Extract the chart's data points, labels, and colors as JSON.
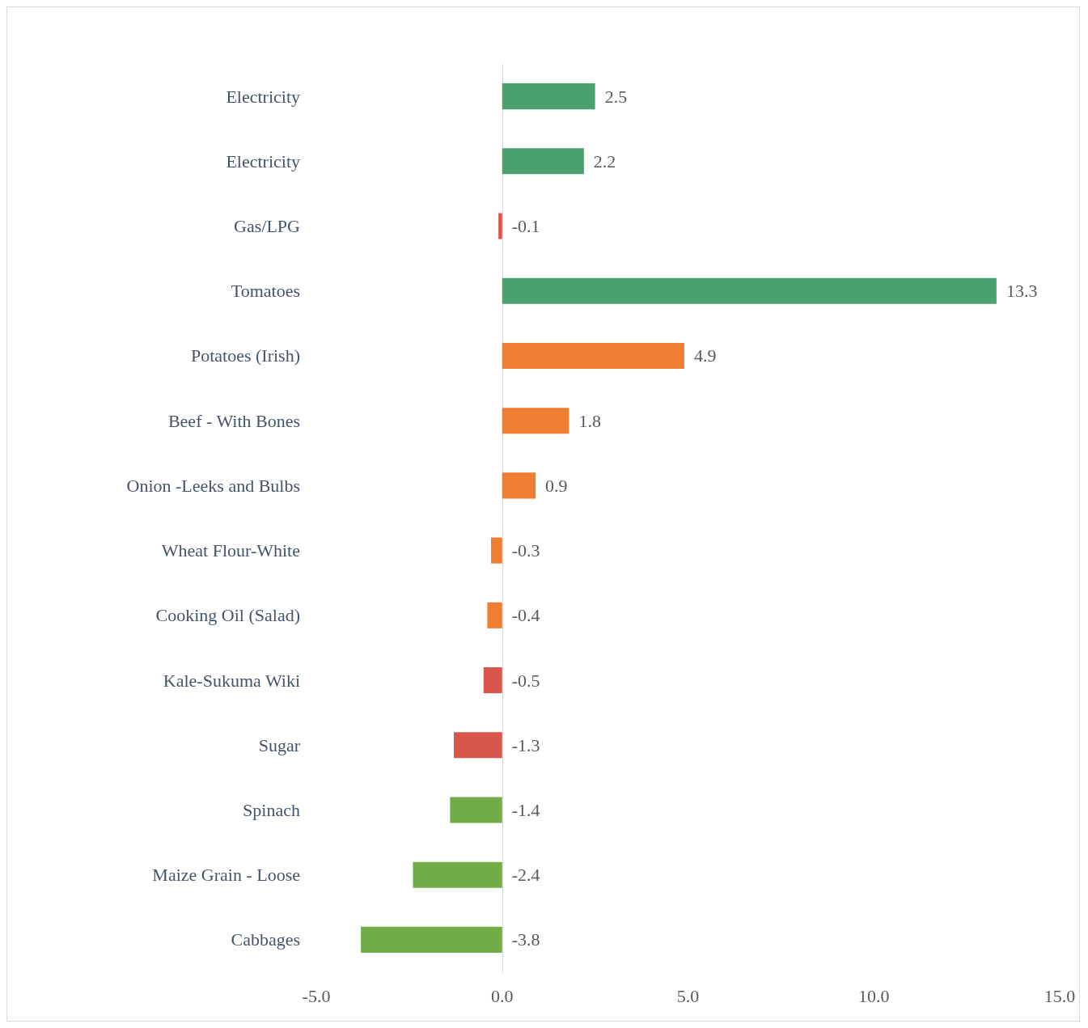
{
  "chart_data": {
    "type": "bar",
    "orientation": "horizontal",
    "data_labels": true,
    "categories": [
      "Electricity",
      "Electricity",
      "Gas/LPG",
      "Tomatoes",
      "Potatoes (Irish)",
      "Beef - With Bones",
      "Onion -Leeks and Bulbs",
      "Wheat Flour-White",
      "Cooking Oil (Salad)",
      "Kale-Sukuma Wiki",
      "Sugar",
      "Spinach",
      "Maize Grain - Loose",
      "Cabbages"
    ],
    "values": [
      2.5,
      2.2,
      -0.1,
      13.3,
      4.9,
      1.8,
      0.9,
      -0.3,
      -0.4,
      -0.5,
      -1.3,
      -1.4,
      -2.4,
      -3.8
    ],
    "colors": [
      "#4aa06f",
      "#4aa06f",
      "#d9574a",
      "#4aa06f",
      "#ef7d32",
      "#ef7d32",
      "#ef7d32",
      "#ef7d32",
      "#ef7d32",
      "#d9574a",
      "#d9574a",
      "#70ad47",
      "#70ad47",
      "#70ad47"
    ],
    "xlim": [
      -5,
      15
    ],
    "xticks": [
      {
        "value": -5,
        "label": "-5.0"
      },
      {
        "value": 0,
        "label": "0.0"
      },
      {
        "value": 5,
        "label": "5.0"
      },
      {
        "value": 10,
        "label": "10.0"
      },
      {
        "value": 15,
        "label": "15.0"
      }
    ]
  }
}
